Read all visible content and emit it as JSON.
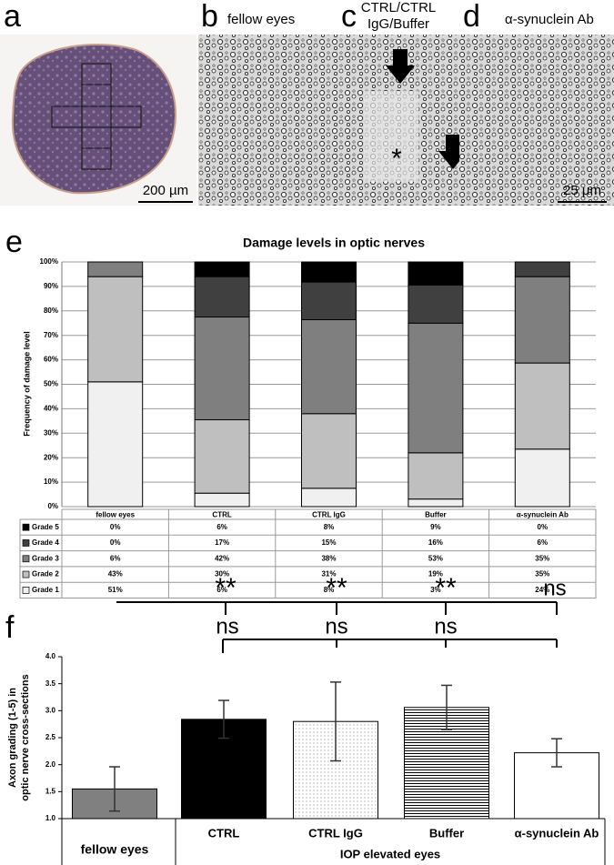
{
  "panels": {
    "a": {
      "label": "a",
      "scale_bar": "200 µm"
    },
    "b": {
      "label": "b",
      "caption": "fellow eyes"
    },
    "c": {
      "label": "c",
      "caption": [
        "CTRL/CTRL",
        "IgG/Buffer"
      ],
      "marker": "*"
    },
    "d": {
      "label": "d",
      "caption": "α-synuclein Ab",
      "scale_bar": "25 µm"
    }
  },
  "chart_data": [
    {
      "type": "bar",
      "stacked": true,
      "panel_label": "e",
      "title": "Damage levels in optic nerves",
      "y_label": "Frequency of damage level",
      "categories": [
        "fellow eyes",
        "CTRL",
        "CTRL IgG",
        "Buffer",
        "α-synuclein Ab"
      ],
      "series": [
        {
          "name": "Grade 1",
          "color": "#f0f0f0",
          "values": [
            51,
            5.5,
            7.5,
            3.1,
            23.5
          ],
          "value_labels": [
            "51%",
            "6%",
            "8%",
            "3%",
            "24%"
          ]
        },
        {
          "name": "Grade 2",
          "color": "#bfbfbf",
          "values": [
            43,
            30,
            30.5,
            18.9,
            35.2
          ],
          "value_labels": [
            "43%",
            "30%",
            "31%",
            "19%",
            "35%"
          ]
        },
        {
          "name": "Grade 3",
          "color": "#7f7f7f",
          "values": [
            6,
            42,
            38.4,
            53,
            35.3
          ],
          "value_labels": [
            "6%",
            "42%",
            "38%",
            "53%",
            "35%"
          ]
        },
        {
          "name": "Grade 4",
          "color": "#404040",
          "values": [
            0,
            16.5,
            15.4,
            15.6,
            6
          ],
          "value_labels": [
            "0%",
            "17%",
            "15%",
            "16%",
            "6%"
          ]
        },
        {
          "name": "Grade 5",
          "color": "#000000",
          "values": [
            0,
            6,
            8.2,
            9.4,
            0
          ],
          "value_labels": [
            "0%",
            "6%",
            "8%",
            "9%",
            "0%"
          ]
        }
      ],
      "ylim": [
        0,
        100
      ],
      "yticks": [
        {
          "value": 0,
          "label": "0%"
        },
        {
          "value": 10,
          "label": "10%"
        },
        {
          "value": 20,
          "label": "20%"
        },
        {
          "value": 30,
          "label": "30%"
        },
        {
          "value": 40,
          "label": "40%"
        },
        {
          "value": 50,
          "label": "50%"
        },
        {
          "value": 60,
          "label": "60%"
        },
        {
          "value": 70,
          "label": "70%"
        },
        {
          "value": 80,
          "label": "80%"
        },
        {
          "value": 90,
          "label": "90%"
        },
        {
          "value": 100,
          "label": "100%"
        }
      ],
      "grid": true
    },
    {
      "type": "bar",
      "panel_label": "f",
      "y_label": [
        "Axon grading (1-5) in",
        "optic nerve cross-sections"
      ],
      "x_label": "IOP elevated eyes",
      "categories": [
        "fellow eyes",
        "CTRL",
        "CTRL IgG",
        "Buffer",
        "α-synuclein Ab"
      ],
      "values": [
        1.55,
        2.84,
        2.8,
        3.06,
        2.22
      ],
      "errors": [
        0.41,
        0.35,
        0.73,
        0.41,
        0.26
      ],
      "fills": [
        "#808080",
        "#000000",
        "dots",
        "stripes",
        "#ffffff"
      ],
      "ylim": [
        1,
        4
      ],
      "yticks": [
        {
          "value": 1,
          "label": "1.0"
        },
        {
          "value": 1.5,
          "label": "1.5"
        },
        {
          "value": 2,
          "label": "2.0"
        },
        {
          "value": 2.5,
          "label": "2.5"
        },
        {
          "value": 3,
          "label": "3.0"
        },
        {
          "value": 3.5,
          "label": "3.5"
        },
        {
          "value": 4,
          "label": "4.0"
        }
      ],
      "annotations": [
        "**",
        "**",
        "**",
        "ns",
        "ns",
        "ns",
        "ns"
      ]
    }
  ]
}
